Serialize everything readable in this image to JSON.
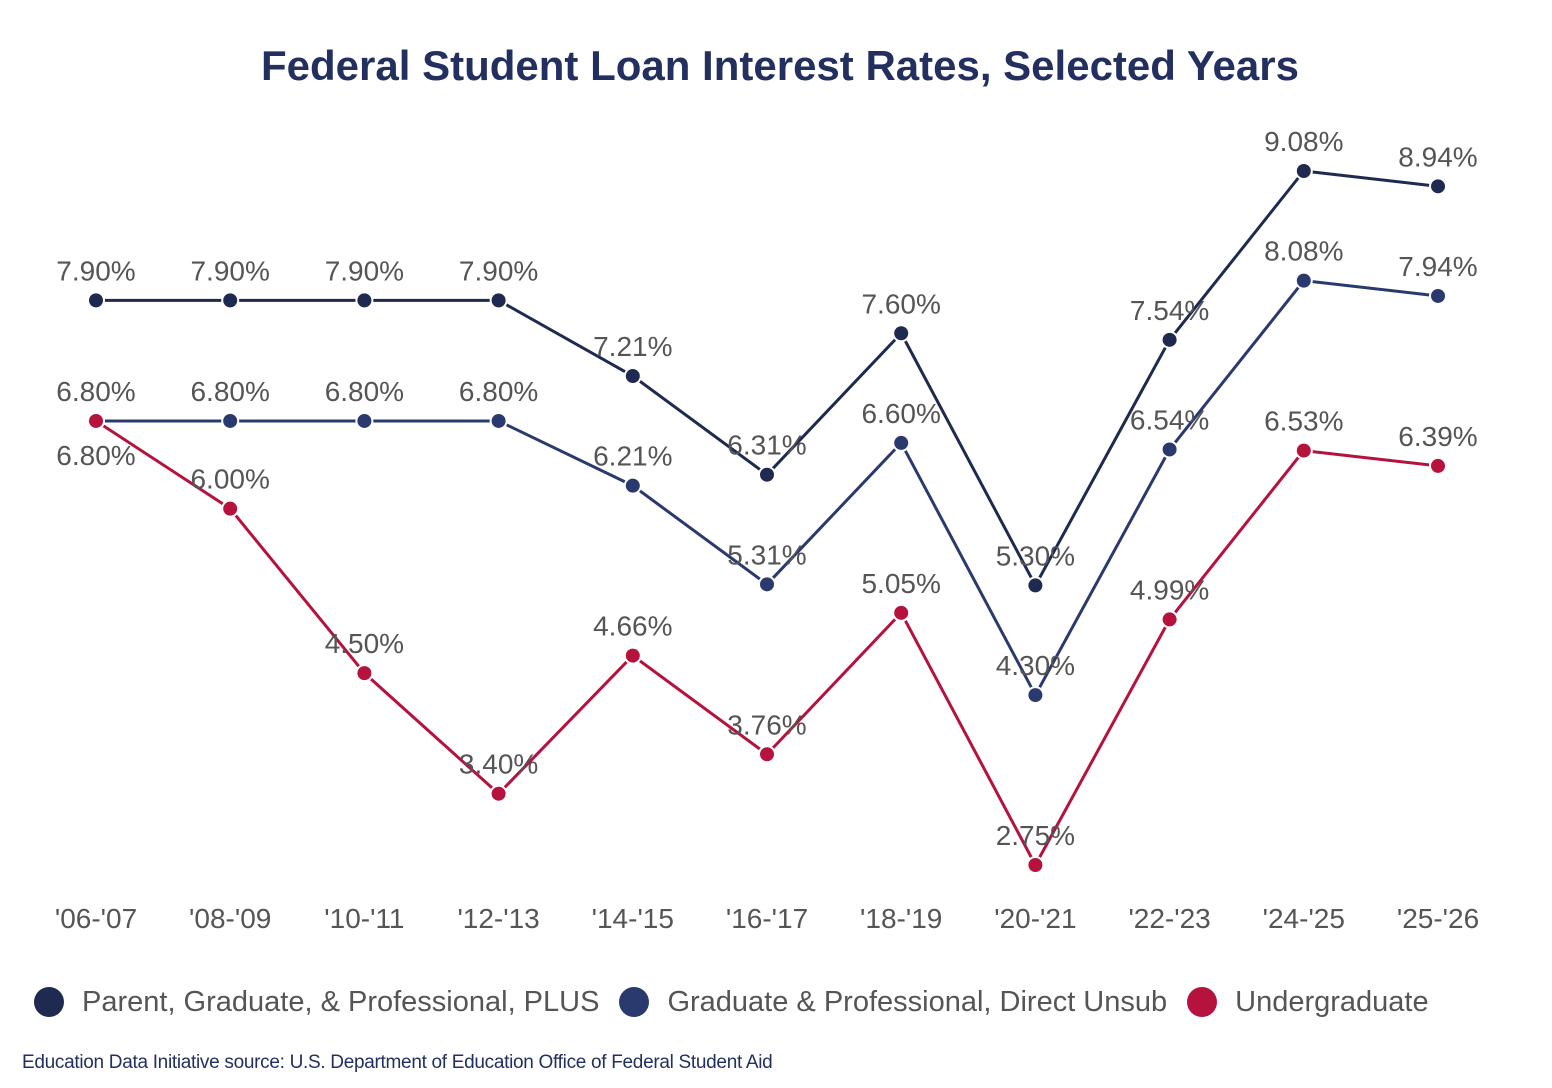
{
  "chart_data": {
    "type": "line",
    "title": "Federal Student Loan Interest Rates, Selected Years",
    "categories": [
      "'06-'07",
      "'08-'09",
      "'10-'11",
      "'12-'13",
      "'14-'15",
      "'16-'17",
      "'18-'19",
      "'20-'21",
      "'22-'23",
      "'24-'25",
      "'25-'26"
    ],
    "series": [
      {
        "name": "Parent, Graduate, & Professional, PLUS",
        "color": "#1e2a4f",
        "values": [
          7.9,
          7.9,
          7.9,
          7.9,
          7.21,
          6.31,
          7.6,
          5.3,
          7.54,
          9.08,
          8.94
        ],
        "labels": [
          "7.90%",
          "7.90%",
          "7.90%",
          "7.90%",
          "7.21%",
          "6.31%",
          "7.60%",
          "5.30%",
          "7.54%",
          "9.08%",
          "8.94%"
        ]
      },
      {
        "name": "Graduate & Professional, Direct Unsub",
        "color": "#2b3a6e",
        "values": [
          6.8,
          6.8,
          6.8,
          6.8,
          6.21,
          5.31,
          6.6,
          4.3,
          6.54,
          8.08,
          7.94
        ],
        "labels": [
          "6.80%",
          "6.80%",
          "6.80%",
          "6.80%",
          "6.21%",
          "5.31%",
          "6.60%",
          "4.30%",
          "6.54%",
          "8.08%",
          "7.94%"
        ]
      },
      {
        "name": "Undergraduate",
        "color": "#b5123e",
        "values": [
          6.8,
          6.0,
          4.5,
          3.4,
          4.66,
          3.76,
          5.05,
          2.75,
          4.99,
          6.53,
          6.39
        ],
        "labels": [
          "6.80%",
          "6.00%",
          "4.50%",
          "3.40%",
          "4.66%",
          "3.76%",
          "5.05%",
          "2.75%",
          "4.99%",
          "6.53%",
          "6.39%"
        ]
      }
    ],
    "ylim": [
      2.75,
      9.08
    ],
    "grid": false,
    "legend_position": "bottom"
  },
  "source": "Education Data Initiative source: U.S. Department of Education Office of Federal Student Aid"
}
